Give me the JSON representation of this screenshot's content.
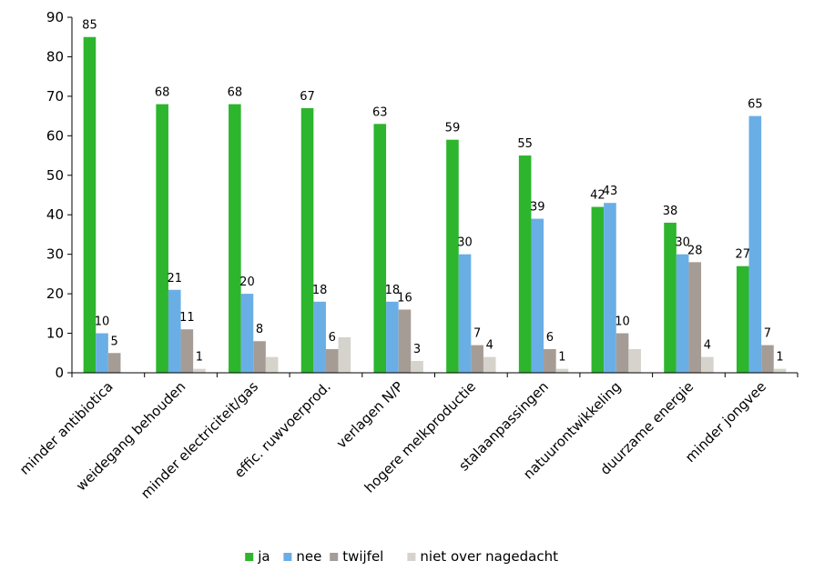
{
  "chart_data": {
    "type": "bar",
    "categories": [
      "minder antibiotica",
      "weidegang behouden",
      "minder electriciteit/gas",
      "effic. ruwvoerprod.",
      "verlagen N/P",
      "hogere melkproductie",
      "stalaanpassingen",
      "natuurontwikkeling",
      "duurzame energie",
      "minder jongvee"
    ],
    "series": [
      {
        "name": "ja",
        "color": "#2db52d",
        "values": [
          85,
          68,
          68,
          67,
          63,
          59,
          55,
          42,
          38,
          27
        ]
      },
      {
        "name": "nee",
        "color": "#6aaee6",
        "values": [
          10,
          21,
          20,
          18,
          18,
          30,
          39,
          43,
          30,
          65
        ]
      },
      {
        "name": "twijfel",
        "color": "#a59c95",
        "values": [
          5,
          11,
          8,
          6,
          16,
          7,
          6,
          10,
          28,
          7
        ]
      },
      {
        "name": "niet over nagedacht",
        "color": "#d6d3cc",
        "values": [
          0,
          1,
          4,
          9,
          3,
          4,
          1,
          6,
          4,
          1
        ]
      }
    ],
    "labeled_series": [
      "ja",
      "nee",
      "twijfel",
      "niet over nagedacht"
    ],
    "hidden_labels": [
      {
        "series": "niet over nagedacht",
        "category": "minder antibiotica"
      },
      {
        "series": "niet over nagedacht",
        "category": "minder electriciteit/gas"
      },
      {
        "series": "niet over nagedacht",
        "category": "effic. ruwvoerprod."
      },
      {
        "series": "niet over nagedacht",
        "category": "natuurontwikkeling"
      }
    ],
    "value_labels": {
      "minder antibiotica": [
        "85",
        "10",
        "5",
        "0"
      ],
      "weidegang behouden": [
        "68",
        "21",
        "11",
        "1"
      ],
      "minder electriciteit/gas": [
        "68",
        "20",
        "8",
        "4"
      ],
      "effic. ruwvoerprod.": [
        "67",
        "18",
        "6",
        "9"
      ],
      "verlagen N/P": [
        "63",
        "18",
        "16",
        "3"
      ],
      "hogere melkproductie": [
        "59",
        "30",
        "7",
        "4"
      ],
      "stalaanpassingen": [
        "55",
        "39",
        "6",
        "1"
      ],
      "natuurontwikkeling": [
        "42",
        "43",
        "10",
        "6"
      ],
      "duurzame energie": [
        "38",
        "30",
        "28",
        "4"
      ],
      "minder jongvee": [
        "27",
        "65",
        "7",
        "1"
      ]
    },
    "title": "",
    "xlabel": "",
    "ylabel": "",
    "ylim": [
      0,
      90
    ],
    "yticks": [
      0,
      10,
      20,
      30,
      40,
      50,
      60,
      70,
      80,
      90
    ],
    "grid": false,
    "legend_position": "bottom"
  }
}
